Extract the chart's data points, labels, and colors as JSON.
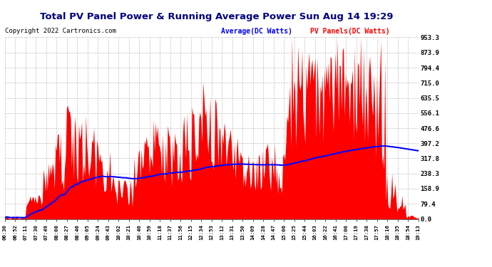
{
  "title": "Total PV Panel Power & Running Average Power Sun Aug 14 19:29",
  "copyright": "Copyright 2022 Cartronics.com",
  "legend_avg": "Average(DC Watts)",
  "legend_pv": "PV Panels(DC Watts)",
  "yticks": [
    0.0,
    79.4,
    158.9,
    238.3,
    317.8,
    397.2,
    476.6,
    556.1,
    635.5,
    715.0,
    794.4,
    873.9,
    953.3
  ],
  "ymax": 953.3,
  "bg_color": "#ffffff",
  "grid_color": "#b0b0b0",
  "bar_color": "#ff0000",
  "avg_color": "#0000ff",
  "title_color": "#000080",
  "time_labels": [
    "06:30",
    "06:52",
    "07:11",
    "07:30",
    "07:49",
    "08:08",
    "08:27",
    "08:46",
    "09:05",
    "09:24",
    "09:43",
    "10:02",
    "10:21",
    "10:40",
    "10:59",
    "11:18",
    "11:37",
    "11:56",
    "12:15",
    "12:34",
    "12:53",
    "13:12",
    "13:31",
    "13:50",
    "14:09",
    "14:28",
    "14:47",
    "15:06",
    "15:25",
    "15:44",
    "16:03",
    "16:22",
    "16:41",
    "17:00",
    "17:19",
    "17:38",
    "17:57",
    "18:16",
    "18:35",
    "18:54",
    "19:13"
  ]
}
